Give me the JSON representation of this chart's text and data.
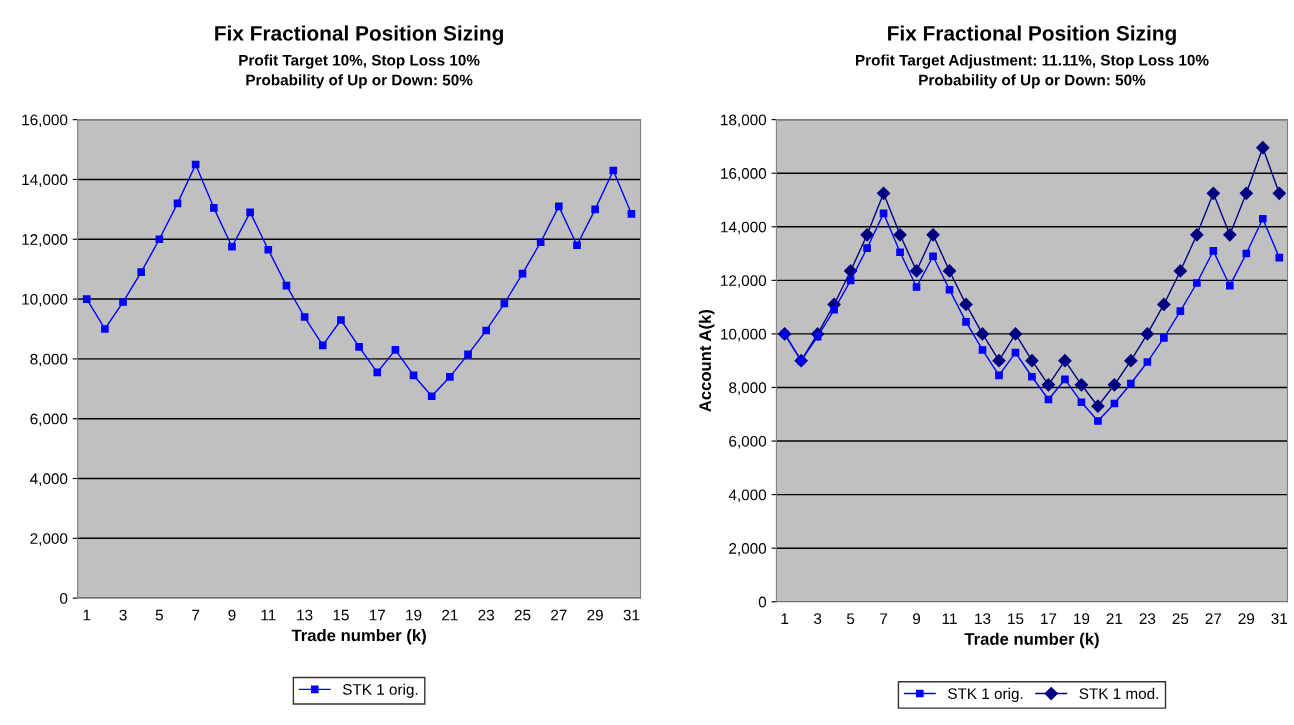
{
  "chart_data": [
    {
      "type": "line",
      "title": "Fix Fractional Position Sizing",
      "subtitle": "Profit Target 10%, Stop Loss 10%\nProbability of Up or Down: 50%",
      "xlabel": "Trade number (k)",
      "categories": [
        "1",
        null,
        "3",
        null,
        "5",
        null,
        "7",
        null,
        "9",
        null,
        "11",
        null,
        "13",
        null,
        "15",
        null,
        "17",
        null,
        "19",
        null,
        "21",
        null,
        "23",
        null,
        "25",
        null,
        "27",
        null,
        "29",
        null,
        "31"
      ],
      "series": [
        {
          "name": "STK 1 orig.",
          "color": "#0000ff",
          "marker": "square",
          "values": [
            10000,
            9000,
            9900,
            10900,
            12000,
            13200,
            14500,
            13050,
            11750,
            12900,
            11650,
            10450,
            9400,
            8450,
            9300,
            8400,
            7550,
            8300,
            7450,
            6750,
            7400,
            8150,
            8950,
            9850,
            10850,
            11900,
            13100,
            11800,
            13000,
            14300,
            12850
          ]
        }
      ],
      "ylim": [
        0,
        16000
      ],
      "yticks": [
        {
          "value": 0,
          "label": "0"
        },
        {
          "value": 2000,
          "label": "2,000"
        },
        {
          "value": 4000,
          "label": "4,000"
        },
        {
          "value": 6000,
          "label": "6,000"
        },
        {
          "value": 8000,
          "label": "8,000"
        },
        {
          "value": 10000,
          "label": "10,000"
        },
        {
          "value": 12000,
          "label": "12,000"
        },
        {
          "value": 14000,
          "label": "14,000"
        },
        {
          "value": 16000,
          "label": "16,000"
        }
      ],
      "grid": "y",
      "legend": "bottom"
    },
    {
      "type": "line",
      "title": "Fix Fractional Position Sizing",
      "subtitle": "Profit Target Adjustment: 11.11%, Stop Loss 10%\nProbability of Up or Down: 50%",
      "xlabel": "Trade number (k)",
      "ylabel": "Account A(k)",
      "categories": [
        "1",
        null,
        "3",
        null,
        "5",
        null,
        "7",
        null,
        "9",
        null,
        "11",
        null,
        "13",
        null,
        "15",
        null,
        "17",
        null,
        "19",
        null,
        "21",
        null,
        "23",
        null,
        "25",
        null,
        "27",
        null,
        "29",
        null,
        "31"
      ],
      "series": [
        {
          "name": "STK 1 orig.",
          "color": "#0000ff",
          "marker": "square",
          "values": [
            10000,
            9000,
            9900,
            10900,
            12000,
            13200,
            14500,
            13050,
            11750,
            12900,
            11650,
            10450,
            9400,
            8450,
            9300,
            8400,
            7550,
            8300,
            7450,
            6750,
            7400,
            8150,
            8950,
            9850,
            10850,
            11900,
            13100,
            11800,
            13000,
            14300,
            12850
          ]
        },
        {
          "name": "STK 1 mod.",
          "color": "#000080",
          "marker": "diamond",
          "values": [
            10000,
            9000,
            10000,
            11100,
            12350,
            13700,
            15250,
            13700,
            12350,
            13700,
            12350,
            11100,
            10000,
            9000,
            10000,
            9000,
            8100,
            9000,
            8100,
            7300,
            8100,
            9000,
            10000,
            11100,
            12350,
            13700,
            15250,
            13700,
            15250,
            16950,
            15250
          ]
        }
      ],
      "ylim": [
        0,
        18000
      ],
      "yticks": [
        {
          "value": 0,
          "label": "0"
        },
        {
          "value": 2000,
          "label": "2,000"
        },
        {
          "value": 4000,
          "label": "4,000"
        },
        {
          "value": 6000,
          "label": "6,000"
        },
        {
          "value": 8000,
          "label": "8,000"
        },
        {
          "value": 10000,
          "label": "10,000"
        },
        {
          "value": 12000,
          "label": "12,000"
        },
        {
          "value": 14000,
          "label": "14,000"
        },
        {
          "value": 16000,
          "label": "16,000"
        },
        {
          "value": 18000,
          "label": "18,000"
        }
      ],
      "grid": "y",
      "legend": "bottom"
    }
  ]
}
